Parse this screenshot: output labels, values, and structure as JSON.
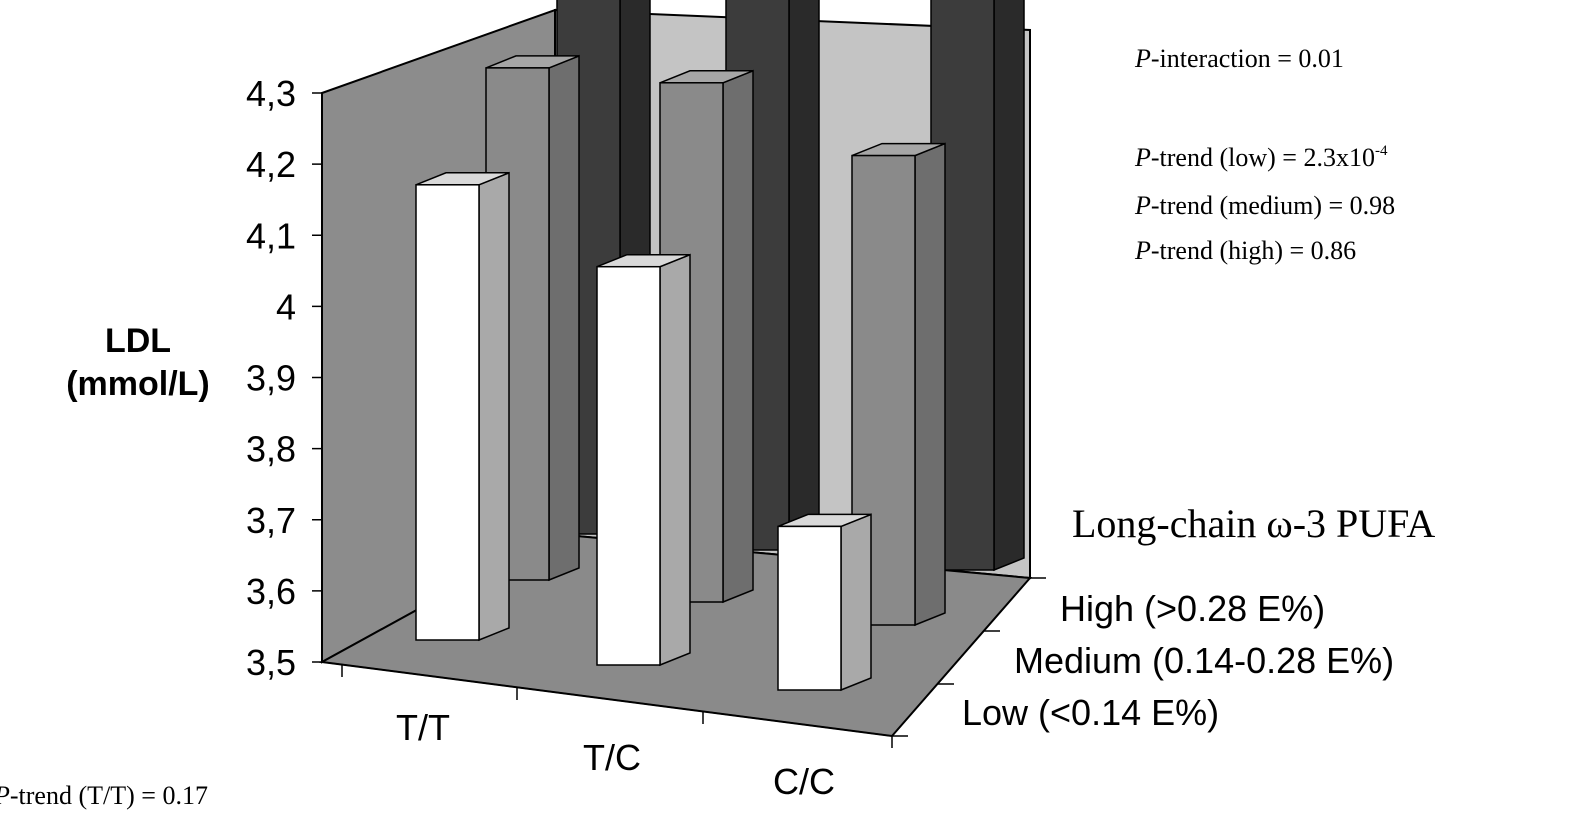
{
  "chart_data": {
    "type": "bar",
    "subtype": "3d-bar",
    "ylabel_line1": "LDL",
    "ylabel_line2": "(mmol/L)",
    "ylim": [
      3.5,
      4.3
    ],
    "yticks": [
      "3,5",
      "3,6",
      "3,7",
      "3,8",
      "3,9",
      "4",
      "4,1",
      "4,2",
      "4,3"
    ],
    "categories": [
      "T/T",
      "T/C",
      "C/C"
    ],
    "legend_title": "Long-chain ω-3 PUFA",
    "series": [
      {
        "name": "High (>0.28 E%)",
        "values": [
          4.35,
          4.33,
          4.31
        ],
        "color": "#3c3c3c"
      },
      {
        "name": "Medium (0.14-0.28 E%)",
        "values": [
          4.22,
          4.23,
          4.16
        ],
        "color": "#8a8a8a"
      },
      {
        "name": "Low (<0.14 E%)",
        "values": [
          4.14,
          4.06,
          3.73
        ],
        "color": "#ffffff"
      }
    ],
    "grid": false
  },
  "stats": {
    "p_label": "P",
    "interaction": "-interaction = 0.01",
    "trend_low_pre": "-trend (low) = 2.3x10",
    "trend_low_exp": "-4",
    "trend_medium": "-trend (medium) = 0.98",
    "trend_high": "-trend (high) = 0.86",
    "trend_tt": "-trend (T/T) = 0.17"
  }
}
